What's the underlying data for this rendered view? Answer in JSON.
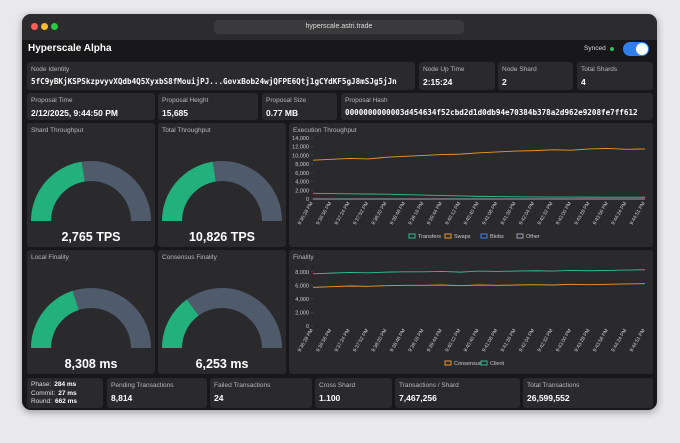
{
  "browser": {
    "url": "hyperscale.astri.trade"
  },
  "header": {
    "title": "Hyperscale Alpha",
    "status": "Synced"
  },
  "info": [
    {
      "label": "Node Identity",
      "value": "5fC9yBKjKSPSkzpvyvXQdb4Q5XyxbS8fMouijPJ...GovxBob24wjQFPE6Qtj1gCYdKF5gJ8mSJg5jJn"
    },
    {
      "label": "Node Up Time",
      "value": "2:15:24"
    },
    {
      "label": "Node Shard",
      "value": "2"
    },
    {
      "label": "Total Shards",
      "value": "4"
    },
    {
      "label": "Proposal Time",
      "value": "2/12/2025, 9:44:50 PM"
    },
    {
      "label": "Proposal Height",
      "value": "15,685"
    },
    {
      "label": "Proposal Size",
      "value": "0.77 MB"
    },
    {
      "label": "Proposal Hash",
      "value": "0000000000003d454634f52cbd2d1d0db94e70384b378a2d962e9208fe7ff612"
    }
  ],
  "gauges": [
    {
      "title": "Shard Throughput",
      "value": "2,765 TPS",
      "fill": 0.45
    },
    {
      "title": "Total Throughput",
      "value": "10,826 TPS",
      "fill": 0.45
    },
    {
      "title": "Local Finality",
      "value": "8,308 ms",
      "fill": 0.4
    },
    {
      "title": "Consensus Finality",
      "value": "6,253 ms",
      "fill": 0.3
    }
  ],
  "chart_data": [
    {
      "type": "line",
      "title": "Execution Throughput",
      "categories": [
        "9:36:28 PM",
        "9:36:56 PM",
        "9:37:24 PM",
        "9:37:52 PM",
        "9:38:20 PM",
        "9:38:48 PM",
        "9:39:16 PM",
        "9:39:44 PM",
        "9:40:12 PM",
        "9:40:40 PM",
        "9:41:08 PM",
        "9:41:36 PM",
        "9:42:04 PM",
        "9:42:32 PM",
        "9:43:00 PM",
        "9:43:28 PM",
        "9:43:56 PM",
        "9:44:24 PM",
        "9:44:51 PM"
      ],
      "ylim": [
        0,
        14000
      ],
      "yticks": [
        0,
        {
          "value": 2000,
          "label": "2,000"
        },
        {
          "value": 4000,
          "label": "4,000"
        },
        {
          "value": 6000,
          "label": "6,000"
        },
        {
          "value": 8000,
          "label": "8,000"
        },
        {
          "value": 10000,
          "label": "10,000"
        },
        {
          "value": 12000,
          "label": "12,000"
        },
        {
          "value": 14000,
          "label": "14,000"
        }
      ],
      "series": [
        {
          "name": "Transfers",
          "color": "#2fbf8f",
          "values": [
            1300,
            1250,
            1200,
            1150,
            1100,
            1000,
            900,
            800,
            700,
            600,
            550,
            500,
            480,
            450,
            450,
            430,
            420,
            410,
            400
          ]
        },
        {
          "name": "Swaps",
          "color": "#e89a2c",
          "values": [
            8900,
            9100,
            9300,
            9200,
            9600,
            9800,
            10000,
            10200,
            10300,
            10600,
            10800,
            11000,
            11100,
            11300,
            11200,
            11500,
            11600,
            11400,
            11500
          ]
        },
        {
          "name": "Blobs",
          "color": "#3b82f6",
          "values": [
            0,
            0,
            0,
            0,
            0,
            0,
            0,
            0,
            0,
            0,
            0,
            0,
            0,
            0,
            0,
            0,
            0,
            0,
            0
          ]
        },
        {
          "name": "Other",
          "color": "#9ca3af",
          "values": [
            0,
            0,
            0,
            0,
            0,
            0,
            0,
            0,
            0,
            0,
            0,
            0,
            0,
            0,
            0,
            0,
            0,
            0,
            0
          ]
        }
      ]
    },
    {
      "type": "line",
      "title": "Finality",
      "categories": [
        "9:36:28 PM",
        "9:36:56 PM",
        "9:37:24 PM",
        "9:37:52 PM",
        "9:38:20 PM",
        "9:38:48 PM",
        "9:39:16 PM",
        "9:39:44 PM",
        "9:40:12 PM",
        "9:40:40 PM",
        "9:41:08 PM",
        "9:41:36 PM",
        "9:42:04 PM",
        "9:42:32 PM",
        "9:43:00 PM",
        "9:43:28 PM",
        "9:43:56 PM",
        "9:44:24 PM",
        "9:44:51 PM"
      ],
      "ylim": [
        0,
        9000
      ],
      "yticks": [
        0,
        {
          "value": 2000,
          "label": "2,000"
        },
        {
          "value": 4000,
          "label": "4,000"
        },
        {
          "value": 6000,
          "label": "6,000"
        },
        {
          "value": 8000,
          "label": "8,000"
        }
      ],
      "series": [
        {
          "name": "Consensus",
          "color": "#e89a2c",
          "values": [
            5700,
            5800,
            5900,
            5850,
            5950,
            6000,
            6000,
            6050,
            5950,
            6050,
            6000,
            6050,
            6100,
            6050,
            6150,
            6100,
            6150,
            6200,
            6250
          ]
        },
        {
          "name": "Client",
          "color": "#2fbf8f",
          "values": [
            7700,
            7800,
            7900,
            7850,
            7950,
            8000,
            8000,
            8050,
            7950,
            8100,
            8050,
            8100,
            8150,
            8100,
            8200,
            8150,
            8200,
            8250,
            8300
          ]
        }
      ]
    }
  ],
  "footer": {
    "phase": [
      {
        "label": "Phase:",
        "value": "284 ms"
      },
      {
        "label": "Commit:",
        "value": "27 ms"
      },
      {
        "label": "Round:",
        "value": "662 ms"
      }
    ],
    "stats": [
      {
        "label": "Pending Transactions",
        "value": "8,814"
      },
      {
        "label": "Failed Transactions",
        "value": "24"
      },
      {
        "label": "Cross Shard",
        "value": "1.100"
      },
      {
        "label": "Transactions / Shard",
        "value": "7,467,256"
      },
      {
        "label": "Total Transactions",
        "value": "26,599,552"
      }
    ]
  }
}
